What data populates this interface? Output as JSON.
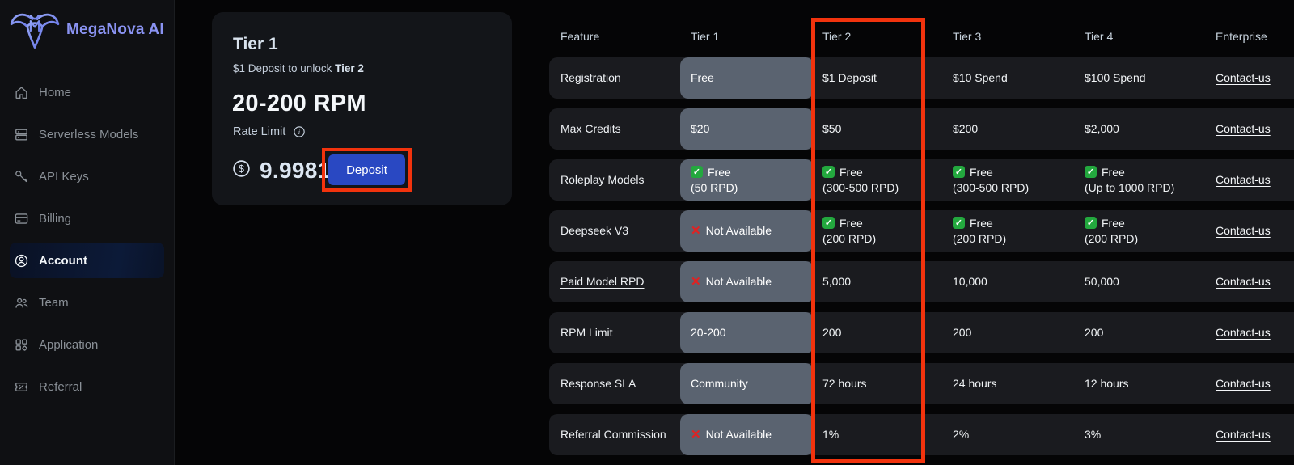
{
  "brand": {
    "name": "MegaNova AI"
  },
  "sidebar": {
    "items": [
      {
        "label": "Home",
        "icon": "home-icon",
        "active": false
      },
      {
        "label": "Serverless Models",
        "icon": "server-icon",
        "active": false
      },
      {
        "label": "API Keys",
        "icon": "key-icon",
        "active": false
      },
      {
        "label": "Billing",
        "icon": "credit-card-icon",
        "active": false
      },
      {
        "label": "Account",
        "icon": "user-circle-icon",
        "active": true
      },
      {
        "label": "Team",
        "icon": "team-icon",
        "active": false
      },
      {
        "label": "Application",
        "icon": "grid-icon",
        "active": false
      },
      {
        "label": "Referral",
        "icon": "ticket-percent-icon",
        "active": false
      }
    ]
  },
  "tier_card": {
    "title": "Tier 1",
    "subtitle_prefix": "$1 Deposit to unlock ",
    "subtitle_bold": "Tier 2",
    "rpm": "20-200 RPM",
    "rate_limit_label": "Rate Limit",
    "balance": "9.9981",
    "deposit_label": "Deposit"
  },
  "table": {
    "headers": [
      "Feature",
      "Tier 1",
      "Tier 2",
      "Tier 3",
      "Tier 4",
      "Enterprise"
    ],
    "highlighted_column": "Tier 2",
    "rows": [
      {
        "feature": "Registration",
        "underline": false,
        "cells": [
          {
            "t": "text",
            "v": "Free"
          },
          {
            "t": "text",
            "v": "$1 Deposit"
          },
          {
            "t": "text",
            "v": "$10 Spend"
          },
          {
            "t": "text",
            "v": "$100 Spend"
          },
          {
            "t": "link",
            "v": "Contact-us"
          }
        ]
      },
      {
        "feature": "Max Credits",
        "underline": false,
        "cells": [
          {
            "t": "text",
            "v": "$20"
          },
          {
            "t": "text",
            "v": "$50"
          },
          {
            "t": "text",
            "v": "$200"
          },
          {
            "t": "text",
            "v": "$2,000"
          },
          {
            "t": "link",
            "v": "Contact-us"
          }
        ]
      },
      {
        "feature": "Roleplay Models",
        "underline": false,
        "cells": [
          {
            "t": "check",
            "v": "Free",
            "sub": "(50 RPD)"
          },
          {
            "t": "check",
            "v": "Free",
            "sub": "(300-500 RPD)"
          },
          {
            "t": "check",
            "v": "Free",
            "sub": "(300-500 RPD)"
          },
          {
            "t": "check",
            "v": "Free",
            "sub": "(Up to 1000 RPD)"
          },
          {
            "t": "link",
            "v": "Contact-us"
          }
        ]
      },
      {
        "feature": "Deepseek V3",
        "underline": false,
        "cells": [
          {
            "t": "cross",
            "v": "Not Available"
          },
          {
            "t": "check",
            "v": "Free",
            "sub": "(200 RPD)"
          },
          {
            "t": "check",
            "v": "Free",
            "sub": "(200 RPD)"
          },
          {
            "t": "check",
            "v": "Free",
            "sub": "(200 RPD)"
          },
          {
            "t": "link",
            "v": "Contact-us"
          }
        ]
      },
      {
        "feature": "Paid Model RPD",
        "underline": true,
        "cells": [
          {
            "t": "cross",
            "v": "Not Available"
          },
          {
            "t": "text",
            "v": "5,000"
          },
          {
            "t": "text",
            "v": "10,000"
          },
          {
            "t": "text",
            "v": "50,000"
          },
          {
            "t": "link",
            "v": "Contact-us"
          }
        ]
      },
      {
        "feature": "RPM Limit",
        "underline": false,
        "cells": [
          {
            "t": "text",
            "v": "20-200"
          },
          {
            "t": "text",
            "v": "200"
          },
          {
            "t": "text",
            "v": "200"
          },
          {
            "t": "text",
            "v": "200"
          },
          {
            "t": "link",
            "v": "Contact-us"
          }
        ]
      },
      {
        "feature": "Response SLA",
        "underline": false,
        "cells": [
          {
            "t": "text",
            "v": "Community"
          },
          {
            "t": "text",
            "v": "72 hours"
          },
          {
            "t": "text",
            "v": "24 hours"
          },
          {
            "t": "text",
            "v": "12 hours"
          },
          {
            "t": "link",
            "v": "Contact-us"
          }
        ]
      },
      {
        "feature": "Referral Commission",
        "underline": false,
        "cells": [
          {
            "t": "cross",
            "v": "Not Available"
          },
          {
            "t": "text",
            "v": "1%"
          },
          {
            "t": "text",
            "v": "2%"
          },
          {
            "t": "text",
            "v": "3%"
          },
          {
            "t": "link",
            "v": "Contact-us"
          }
        ]
      }
    ]
  },
  "colors": {
    "annotation_red": "#f2330d",
    "deposit_blue": "#2948c2",
    "check_green": "#23a83e",
    "cross_red": "#e02222",
    "tier1_pill_slate": "#5a6370",
    "brand_purple": "#8a93f2",
    "row_bg": "#1a1b1f",
    "sidebar_bg": "#0f1013"
  }
}
